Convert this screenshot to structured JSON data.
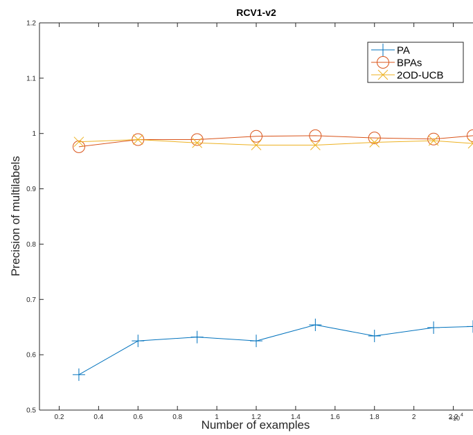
{
  "chart_data": {
    "type": "line",
    "title": "RCV1-v2",
    "xlabel": "Number of examples",
    "ylabel": "Precision of multilabels",
    "x_multiplier": "×10",
    "x_multiplier_exp": "4",
    "xlim": [
      0.1,
      2.3
    ],
    "ylim": [
      0.5,
      1.2
    ],
    "xticks": [
      "0.2",
      "0.4",
      "0.6",
      "0.8",
      "1",
      "1.2",
      "1.4",
      "1.6",
      "1.8",
      "2",
      "2.2"
    ],
    "xtick_values": [
      0.2,
      0.4,
      0.6,
      0.8,
      1.0,
      1.2,
      1.4,
      1.6,
      1.8,
      2.0,
      2.2
    ],
    "yticks": [
      "0.5",
      "0.6",
      "0.7",
      "0.8",
      "0.9",
      "1",
      "1.1",
      "1.2"
    ],
    "ytick_values": [
      0.5,
      0.6,
      0.7,
      0.8,
      0.9,
      1.0,
      1.1,
      1.2
    ],
    "x": [
      0.3,
      0.6,
      0.9,
      1.2,
      1.5,
      1.8,
      2.1,
      2.3
    ],
    "grid": false,
    "legend_position": "top-right",
    "series": [
      {
        "name": "PA",
        "color": "#0072BD",
        "marker": "plus",
        "values": [
          0.564,
          0.625,
          0.632,
          0.625,
          0.654,
          0.634,
          0.649,
          0.651
        ]
      },
      {
        "name": "BPAs",
        "color": "#D95319",
        "marker": "circle",
        "values": [
          0.976,
          0.989,
          0.989,
          0.995,
          0.996,
          0.992,
          0.99,
          0.996
        ]
      },
      {
        "name": "2OD-UCB",
        "color": "#EDB120",
        "marker": "x",
        "values": [
          0.985,
          0.989,
          0.983,
          0.979,
          0.979,
          0.984,
          0.987,
          0.982
        ]
      }
    ]
  }
}
